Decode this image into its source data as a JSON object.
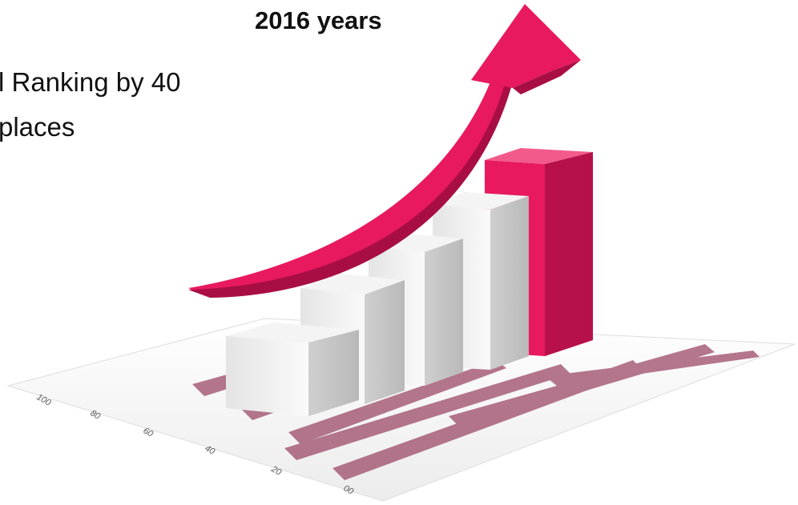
{
  "text": {
    "heading": "2016 years",
    "lines": [
      "l Ranking by 40",
      "places"
    ]
  },
  "illustration": {
    "axis_labels": [
      "100",
      "80",
      "60",
      "40",
      "20",
      "00"
    ]
  }
}
